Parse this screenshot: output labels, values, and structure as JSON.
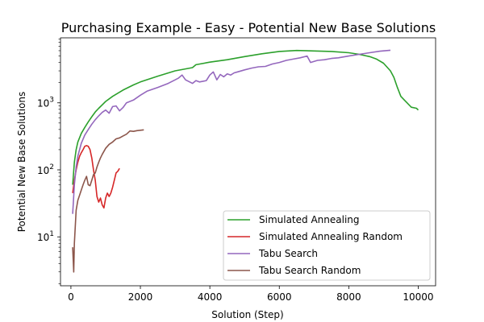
{
  "chart_data": {
    "type": "line",
    "title": "Purchasing Example - Easy - Potential New Base Solutions",
    "xlabel": "Solution (Step)",
    "ylabel": "Potential New Base Solutions",
    "xlim": [
      -300,
      10500
    ],
    "ylim_log10": [
      0.27,
      3.97
    ],
    "yscale": "log",
    "grid": false,
    "legend_position": "lower-right",
    "x_ticks": [
      {
        "value": 0,
        "label": "0"
      },
      {
        "value": 2000,
        "label": "2000"
      },
      {
        "value": 4000,
        "label": "4000"
      },
      {
        "value": 6000,
        "label": "6000"
      },
      {
        "value": 8000,
        "label": "8000"
      },
      {
        "value": 10000,
        "label": "10000"
      }
    ],
    "y_ticks": [
      {
        "value": 10,
        "base": "10",
        "exp": "1"
      },
      {
        "value": 100,
        "base": "10",
        "exp": "2"
      },
      {
        "value": 1000,
        "base": "10",
        "exp": "3"
      }
    ],
    "series": [
      {
        "name": "Simulated Annealing",
        "color": "#2ca02c",
        "x": [
          50,
          100,
          150,
          200,
          300,
          400,
          500,
          600,
          700,
          800,
          1000,
          1200,
          1500,
          1800,
          2000,
          2500,
          3000,
          3500,
          3600,
          4000,
          4500,
          5000,
          5500,
          6000,
          6500,
          7000,
          7500,
          8000,
          8300,
          8600,
          8800,
          9000,
          9200,
          9300,
          9400,
          9500,
          9600,
          9800,
          9950,
          10000
        ],
        "y": [
          60,
          130,
          200,
          260,
          350,
          430,
          520,
          620,
          730,
          830,
          1050,
          1250,
          1550,
          1850,
          2050,
          2500,
          3000,
          3350,
          3700,
          4050,
          4400,
          4900,
          5400,
          5850,
          6050,
          5950,
          5850,
          5600,
          5300,
          4900,
          4500,
          3900,
          3000,
          2400,
          1700,
          1250,
          1100,
          860,
          830,
          780
        ]
      },
      {
        "name": "Simulated Annealing Random",
        "color": "#d62728",
        "x": [
          50,
          100,
          150,
          200,
          250,
          300,
          350,
          400,
          450,
          500,
          550,
          600,
          650,
          700,
          750,
          800,
          850,
          900,
          950,
          1000,
          1050,
          1100,
          1150,
          1200,
          1250,
          1300,
          1350,
          1400
        ],
        "y": [
          45,
          70,
          100,
          130,
          160,
          180,
          200,
          225,
          230,
          225,
          200,
          150,
          100,
          70,
          40,
          33,
          38,
          30,
          27,
          38,
          45,
          40,
          45,
          55,
          70,
          90,
          95,
          105
        ]
      },
      {
        "name": "Tabu Search",
        "color": "#9467bd",
        "x": [
          50,
          100,
          150,
          200,
          300,
          400,
          500,
          600,
          700,
          800,
          900,
          1000,
          1100,
          1200,
          1300,
          1400,
          1500,
          1600,
          1800,
          2000,
          2200,
          2500,
          2800,
          3000,
          3100,
          3200,
          3300,
          3500,
          3600,
          3700,
          3900,
          4000,
          4100,
          4200,
          4300,
          4400,
          4500,
          4600,
          4700,
          4800,
          5000,
          5200,
          5400,
          5600,
          5800,
          6000,
          6200,
          6400,
          6600,
          6800,
          6900,
          7100,
          7300,
          7500,
          7700,
          8000,
          8300,
          8600,
          8900,
          9200
        ],
        "y": [
          22,
          60,
          110,
          160,
          250,
          330,
          400,
          480,
          560,
          640,
          720,
          780,
          700,
          880,
          900,
          760,
          850,
          1000,
          1100,
          1300,
          1500,
          1700,
          1950,
          2200,
          2350,
          2600,
          2200,
          1950,
          2150,
          2050,
          2150,
          2600,
          2900,
          2200,
          2650,
          2450,
          2700,
          2600,
          2800,
          2900,
          3100,
          3300,
          3450,
          3500,
          3800,
          4000,
          4300,
          4500,
          4700,
          5000,
          4000,
          4300,
          4400,
          4600,
          4700,
          5000,
          5300,
          5600,
          5900,
          6100
        ]
      },
      {
        "name": "Tabu Search Random",
        "color": "#8c564b",
        "x": [
          50,
          80,
          100,
          150,
          200,
          250,
          300,
          350,
          400,
          450,
          500,
          550,
          600,
          650,
          700,
          750,
          800,
          850,
          900,
          1000,
          1100,
          1200,
          1300,
          1400,
          1500,
          1600,
          1700,
          1800,
          1900,
          2000,
          2100
        ],
        "y": [
          7,
          3,
          8,
          25,
          35,
          42,
          50,
          60,
          70,
          80,
          60,
          58,
          70,
          85,
          90,
          110,
          130,
          150,
          170,
          210,
          240,
          260,
          290,
          300,
          320,
          340,
          380,
          375,
          385,
          390,
          395
        ]
      }
    ]
  }
}
